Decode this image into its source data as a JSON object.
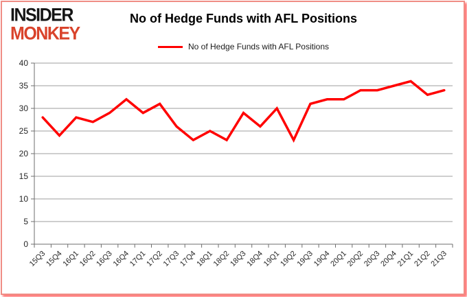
{
  "logo": {
    "line1": "INSIDER",
    "line2": "MONKEY"
  },
  "header": {
    "title": "No of Hedge Funds with AFL Positions"
  },
  "legend": {
    "label": "No of Hedge Funds with AFL Positions"
  },
  "colors": {
    "line": "#ff0000",
    "logo_black": "#151515",
    "logo_red": "#d9432b",
    "grid": "#9d9d9d",
    "axis": "#6e6e6e",
    "tick_text": "#262626",
    "frame_red": "#ef8d85"
  },
  "chart_data": {
    "type": "line",
    "title": "No of Hedge Funds with AFL Positions",
    "xlabel": "",
    "ylabel": "",
    "categories": [
      "15Q3",
      "15Q4",
      "16Q1",
      "16Q2",
      "16Q3",
      "16Q4",
      "17Q1",
      "17Q2",
      "17Q3",
      "17Q4",
      "18Q1",
      "18Q2",
      "18Q3",
      "18Q4",
      "19Q1",
      "19Q2",
      "19Q3",
      "19Q4",
      "20Q1",
      "20Q2",
      "20Q3",
      "20Q4",
      "21Q1",
      "21Q2",
      "21Q3"
    ],
    "series": [
      {
        "name": "No of Hedge Funds with AFL Positions",
        "values": [
          28,
          24,
          28,
          27,
          29,
          32,
          29,
          31,
          26,
          23,
          25,
          23,
          29,
          26,
          30,
          23,
          31,
          32,
          32,
          34,
          34,
          35,
          36,
          33,
          34
        ]
      }
    ],
    "ylim": [
      0,
      40
    ],
    "yticks": [
      0,
      5,
      10,
      15,
      20,
      25,
      30,
      35,
      40
    ],
    "grid": true,
    "legend_position": "top-center"
  }
}
